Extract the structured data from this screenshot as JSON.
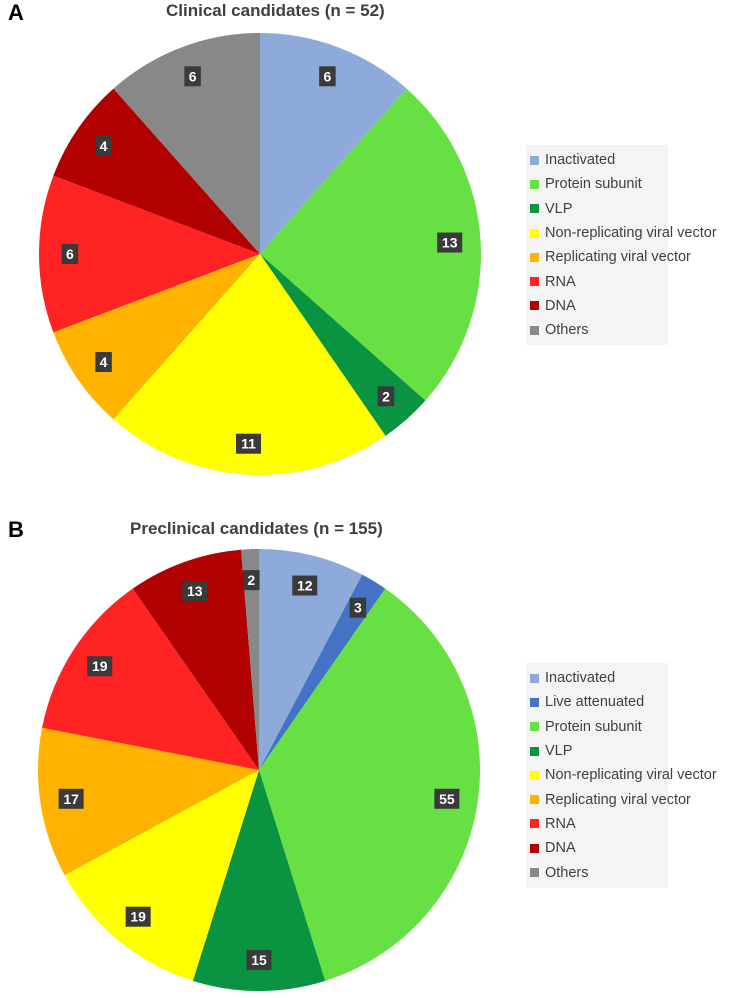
{
  "chart_data": [
    {
      "panel": "A",
      "type": "pie",
      "title": "Clinical candidates (n = 52)",
      "legend_position": "right",
      "slices": [
        {
          "name": "Inactivated",
          "value": 6,
          "color": "#8eaadb"
        },
        {
          "name": "Protein subunit",
          "value": 13,
          "color": "#67e044"
        },
        {
          "name": "VLP",
          "value": 2,
          "color": "#0a9442"
        },
        {
          "name": "Non-replicating viral vector",
          "value": 11,
          "color": "#ffff00"
        },
        {
          "name": "Replicating viral vector",
          "value": 4,
          "color": "#ffb300"
        },
        {
          "name": "RNA",
          "value": 6,
          "color": "#ff2323"
        },
        {
          "name": "DNA",
          "value": 4,
          "color": "#b00000"
        },
        {
          "name": "Others",
          "value": 6,
          "color": "#888888"
        }
      ]
    },
    {
      "panel": "B",
      "type": "pie",
      "title": "Preclinical candidates (n = 155)",
      "legend_position": "right",
      "slices": [
        {
          "name": "Inactivated",
          "value": 12,
          "color": "#8eaadb"
        },
        {
          "name": "Live attenuated",
          "value": 3,
          "color": "#4472c4"
        },
        {
          "name": "Protein subunit",
          "value": 55,
          "color": "#67e044"
        },
        {
          "name": "VLP",
          "value": 15,
          "color": "#0a9442"
        },
        {
          "name": "Non-replicating viral vector",
          "value": 19,
          "color": "#ffff00"
        },
        {
          "name": "Replicating viral vector",
          "value": 17,
          "color": "#ffb300"
        },
        {
          "name": "RNA",
          "value": 19,
          "color": "#ff2323"
        },
        {
          "name": "DNA",
          "value": 13,
          "color": "#b00000"
        },
        {
          "name": "Others",
          "value": 2,
          "color": "#888888"
        }
      ]
    }
  ]
}
